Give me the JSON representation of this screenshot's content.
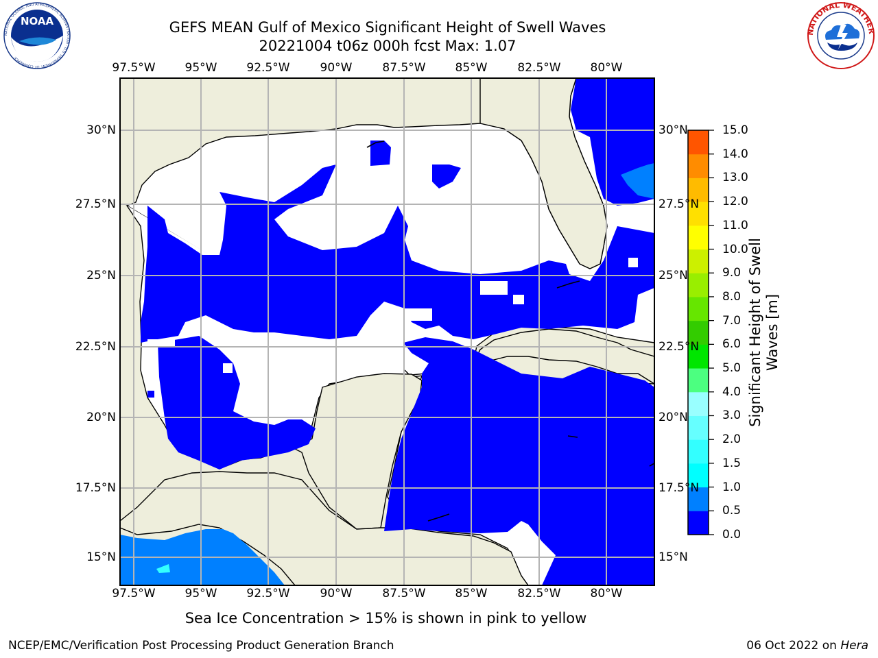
{
  "header": {
    "title_line1": "GEFS MEAN Gulf of Mexico Significant Height of Swell Waves",
    "title_line2": "20221004 t06z 000h fcst   Max: 1.07"
  },
  "logos": {
    "noaa": "NOAA",
    "noaa_ring": "NATIONAL OCEANIC AND ATMOSPHERIC ADMINISTRATION · U.S. DEPARTMENT OF COMMERCE",
    "nws_ring": "NATIONAL WEATHER SERVICE"
  },
  "map": {
    "lon_labels": [
      "97.5°W",
      "95°W",
      "92.5°W",
      "90°W",
      "87.5°W",
      "85°W",
      "82.5°W",
      "80°W"
    ],
    "lat_labels": [
      "30°N",
      "27.5°N",
      "25°N",
      "22.5°N",
      "20°N",
      "17.5°N",
      "15°N"
    ],
    "extent": {
      "lon_min": -98,
      "lon_max": -78.25,
      "lat_min": 14,
      "lat_max": 31.7
    },
    "colors": {
      "land": "#EEEEDC",
      "ocean_below_threshold": "#FFFFFF",
      "coast": "#000000",
      "grid": "#B4B4B4"
    }
  },
  "colorbar": {
    "label": "Significant Height of Swell Waves [m]",
    "ticks": [
      "0.0",
      "0.5",
      "1.0",
      "1.5",
      "2.0",
      "3.0",
      "4.0",
      "5.0",
      "6.0",
      "7.0",
      "8.0",
      "9.0",
      "10.0",
      "11.0",
      "12.0",
      "13.0",
      "14.0",
      "15.0"
    ],
    "colors": [
      "#0000FF",
      "#0080FF",
      "#00FFFF",
      "#33FFFF",
      "#66FFFF",
      "#99FFFF",
      "#4CFF80",
      "#00E600",
      "#33CC00",
      "#66E600",
      "#99EE00",
      "#CCF000",
      "#FFFF00",
      "#FFE000",
      "#FFBB00",
      "#FF8C00",
      "#FF5500",
      "#FF2000",
      "#FF0000"
    ]
  },
  "caption": "Sea Ice Concentration > 15% is shown in pink to yellow",
  "footer": {
    "credit": "NCEP/EMC/Verification Post Processing Product Generation Branch",
    "date": "06 Oct 2022 on",
    "host": "Hera"
  }
}
